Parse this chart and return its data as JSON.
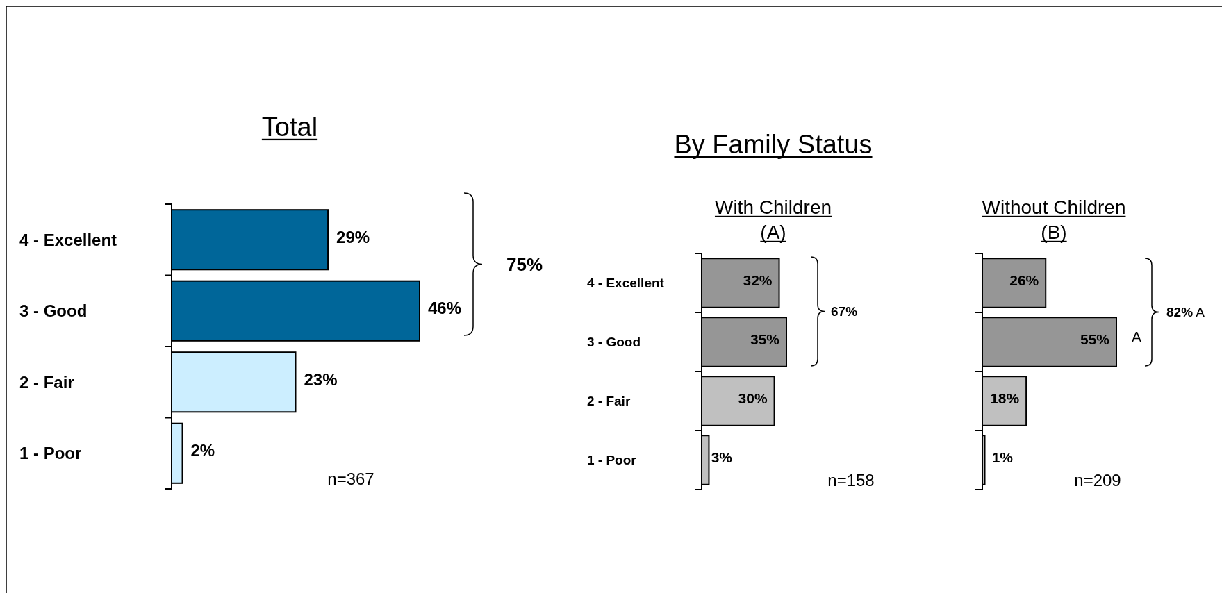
{
  "chart_data": [
    {
      "type": "bar",
      "orientation": "horizontal",
      "title": "Total",
      "categories": [
        "4 - Excellent",
        "3 - Good",
        "2 - Fair",
        "1 - Poor"
      ],
      "values": [
        29,
        46,
        23,
        2
      ],
      "colors": [
        "#006699",
        "#006699",
        "#cceeff",
        "#cceeff"
      ],
      "value_labels": [
        "29%",
        "46%",
        "23%",
        "2%"
      ],
      "annotations": [
        "75%",
        "n=367"
      ]
    },
    {
      "type": "bar",
      "orientation": "horizontal",
      "title": "By Family Status",
      "subtitle": "With Children\n(A)",
      "categories": [
        "4  - Excellent",
        "3 - Good",
        "2 - Fair",
        "1  - Poor"
      ],
      "values": [
        32,
        35,
        30,
        3
      ],
      "colors": [
        "#969696",
        "#969696",
        "#c0c0c0",
        "#c0c0c0"
      ],
      "value_labels": [
        "32%",
        "35%",
        "30%",
        "3%"
      ],
      "annotations": [
        "67%",
        "n=158"
      ]
    },
    {
      "type": "bar",
      "orientation": "horizontal",
      "subtitle": "Without Children\n(B)",
      "categories": [
        null,
        null,
        null,
        null
      ],
      "values": [
        26,
        55,
        18,
        1
      ],
      "colors": [
        "#969696",
        "#969696",
        "#c0c0c0",
        "#c0c0c0"
      ],
      "value_labels": [
        "26%",
        "55%",
        "18%",
        "1%"
      ],
      "annotations": [
        "82% A",
        {
          "text": "A",
          "x": 55
        },
        "n=209"
      ]
    }
  ]
}
